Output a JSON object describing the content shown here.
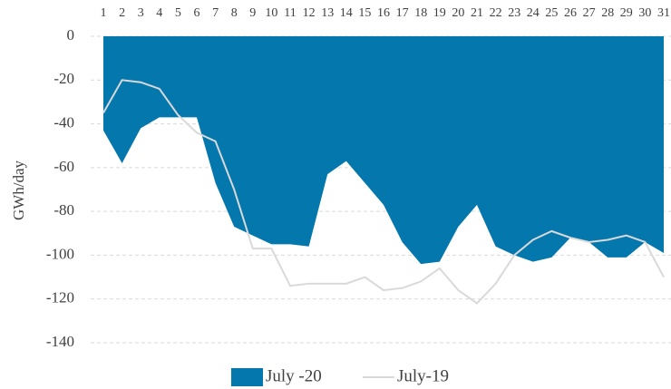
{
  "chart_data": {
    "type": "area_line",
    "y_label": "GWh/day",
    "categories": [
      "1",
      "2",
      "3",
      "4",
      "5",
      "6",
      "7",
      "8",
      "9",
      "10",
      "11",
      "12",
      "13",
      "14",
      "15",
      "16",
      "17",
      "18",
      "19",
      "20",
      "21",
      "22",
      "23",
      "24",
      "25",
      "26",
      "27",
      "28",
      "29",
      "30",
      "31"
    ],
    "series": [
      {
        "name": "July -20",
        "kind": "area",
        "color": "#0477ad",
        "values": [
          -43,
          -58,
          -42,
          -37,
          -37,
          -37,
          -67,
          -87,
          -91,
          -95,
          -95,
          -96,
          -63,
          -57,
          -67,
          -77,
          -94,
          -104,
          -103,
          -87,
          -77,
          -96,
          -100,
          -103,
          -101,
          -92,
          -94,
          -101,
          -101,
          -94,
          -99
        ]
      },
      {
        "name": "July-19",
        "kind": "line",
        "color": "#d9d9d9",
        "values": [
          -35,
          -20,
          -21,
          -24,
          -36,
          -44,
          -48,
          -70,
          -97,
          -97,
          -114,
          -113,
          -113,
          -113,
          -110,
          -116,
          -115,
          -112,
          -106,
          -116,
          -122,
          -113,
          -100,
          -93,
          -89,
          -92,
          -94,
          -93,
          -91,
          -94,
          -110
        ]
      }
    ],
    "ylim": [
      -140,
      0
    ],
    "yticks": [
      0,
      -20,
      -40,
      -60,
      -80,
      -100,
      -120,
      -140
    ],
    "grid": true
  }
}
